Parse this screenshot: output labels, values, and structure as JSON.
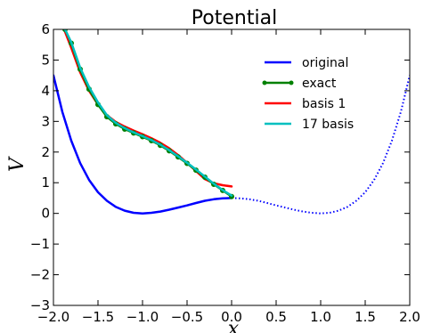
{
  "chart_data": {
    "type": "line",
    "title": "Potential",
    "xlabel": "x",
    "ylabel": "V",
    "xlim": [
      -2.0,
      2.0
    ],
    "ylim": [
      -3,
      6
    ],
    "xticks": [
      -2.0,
      -1.5,
      -1.0,
      -0.5,
      0.0,
      0.5,
      1.0,
      1.5,
      2.0
    ],
    "xtick_labels": [
      "−2.0",
      "−1.5",
      "−1.0",
      "−0.5",
      "0.0",
      "0.5",
      "1.0",
      "1.5",
      "2.0"
    ],
    "yticks": [
      -3,
      -2,
      -1,
      0,
      1,
      2,
      3,
      4,
      5,
      6
    ],
    "ytick_labels": [
      "−3",
      "−2",
      "−1",
      "0",
      "1",
      "2",
      "3",
      "4",
      "5",
      "6"
    ],
    "grid": false,
    "legend_position": "top-right",
    "series": [
      {
        "name": "original",
        "color": "#0000ff",
        "style": "solid",
        "x": [
          -2.0,
          -1.9,
          -1.8,
          -1.7,
          -1.6,
          -1.5,
          -1.4,
          -1.3,
          -1.2,
          -1.1,
          -1.0,
          -0.9,
          -0.8,
          -0.7,
          -0.6,
          -0.5,
          -0.4,
          -0.3,
          -0.2,
          -0.1,
          0.0
        ],
        "y": [
          4.5,
          3.31,
          2.37,
          1.64,
          1.09,
          0.69,
          0.41,
          0.21,
          0.09,
          0.02,
          0.0,
          0.02,
          0.06,
          0.12,
          0.19,
          0.26,
          0.34,
          0.41,
          0.46,
          0.49,
          0.5
        ]
      },
      {
        "name": "original (dotted continuation)",
        "color": "#0000ff",
        "style": "dotted",
        "x": [
          0.0,
          0.1,
          0.2,
          0.3,
          0.4,
          0.5,
          0.6,
          0.7,
          0.8,
          0.9,
          1.0,
          1.1,
          1.2,
          1.3,
          1.4,
          1.5,
          1.6,
          1.7,
          1.8,
          1.9,
          2.0
        ],
        "y": [
          0.5,
          0.49,
          0.46,
          0.41,
          0.34,
          0.26,
          0.19,
          0.12,
          0.06,
          0.02,
          0.0,
          0.02,
          0.09,
          0.21,
          0.41,
          0.69,
          1.09,
          1.64,
          2.37,
          3.31,
          4.5
        ]
      },
      {
        "name": "exact",
        "color": "#008000",
        "style": "solid",
        "marker": "circle",
        "x": [
          -1.87,
          -1.8,
          -1.7,
          -1.6,
          -1.5,
          -1.4,
          -1.3,
          -1.2,
          -1.1,
          -1.0,
          -0.9,
          -0.8,
          -0.7,
          -0.6,
          -0.5,
          -0.4,
          -0.3,
          -0.2,
          -0.1,
          0.0
        ],
        "y": [
          6.0,
          5.55,
          4.7,
          4.05,
          3.55,
          3.15,
          2.92,
          2.75,
          2.62,
          2.5,
          2.37,
          2.22,
          2.04,
          1.84,
          1.63,
          1.41,
          1.18,
          0.95,
          0.75,
          0.55
        ]
      },
      {
        "name": "basis 1",
        "color": "#ff0000",
        "style": "solid",
        "x": [
          -1.88,
          -1.8,
          -1.7,
          -1.6,
          -1.5,
          -1.4,
          -1.3,
          -1.2,
          -1.1,
          -1.0,
          -0.9,
          -0.8,
          -0.7,
          -0.6,
          -0.5,
          -0.4,
          -0.3,
          -0.2,
          -0.1,
          0.0
        ],
        "y": [
          6.0,
          5.4,
          4.6,
          4.0,
          3.55,
          3.2,
          2.98,
          2.83,
          2.7,
          2.58,
          2.45,
          2.3,
          2.12,
          1.9,
          1.65,
          1.38,
          1.12,
          0.98,
          0.92,
          0.88
        ]
      },
      {
        "name": "17 basis",
        "color": "#00bfbf",
        "style": "solid",
        "x": [
          -1.87,
          -1.8,
          -1.7,
          -1.6,
          -1.5,
          -1.4,
          -1.3,
          -1.2,
          -1.1,
          -1.0,
          -0.9,
          -0.8,
          -0.7,
          -0.6,
          -0.5,
          -0.4,
          -0.3,
          -0.2,
          -0.1,
          0.0
        ],
        "y": [
          6.0,
          5.58,
          4.75,
          4.12,
          3.62,
          3.2,
          2.95,
          2.78,
          2.64,
          2.52,
          2.39,
          2.24,
          2.06,
          1.86,
          1.65,
          1.43,
          1.2,
          0.97,
          0.76,
          0.58
        ]
      }
    ],
    "legend": [
      "original",
      "exact",
      "basis 1",
      "17 basis"
    ]
  }
}
